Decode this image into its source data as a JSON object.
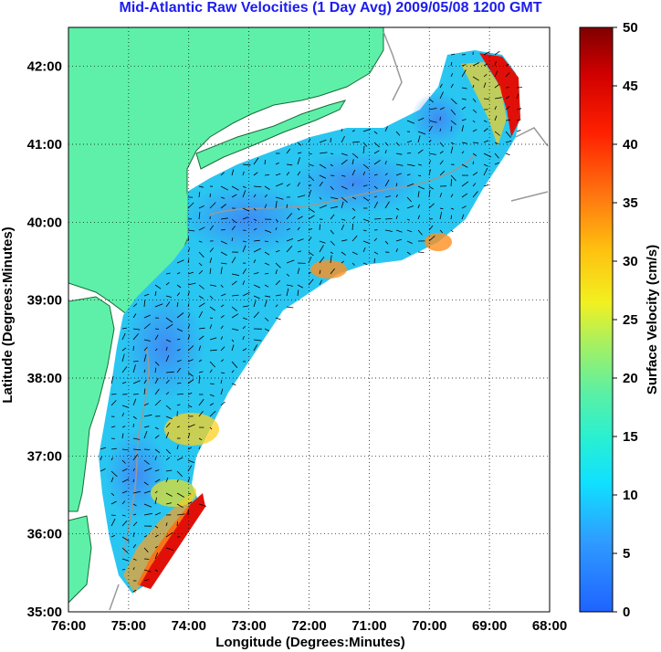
{
  "title": "Mid-Atlantic Raw Velocities (1 Day Avg) 2009/05/08 1200 GMT",
  "xlabel": "Longitude (Degrees:Minutes)",
  "ylabel": "Latitude (Degrees:Minutes)",
  "colorbar_label": "Surface Velocity (cm/s)",
  "x_ticks": [
    "76:00",
    "75:00",
    "74:00",
    "73:00",
    "72:00",
    "71:00",
    "70:00",
    "69:00",
    "68:00"
  ],
  "y_ticks": [
    "35:00",
    "36:00",
    "37:00",
    "38:00",
    "39:00",
    "40:00",
    "41:00",
    "42:00"
  ],
  "colorbar_ticks": [
    "0",
    "5",
    "10",
    "15",
    "20",
    "25",
    "30",
    "35",
    "40",
    "45",
    "50"
  ],
  "colors": {
    "land": "#5ef0a8",
    "title": "#1c1cf0",
    "grid": "#000000",
    "bathymetry": "#999999"
  },
  "chart_data": {
    "type": "heatmap",
    "x_range": [
      -76,
      -68
    ],
    "y_range": [
      35,
      42.5
    ],
    "colorbar_range": [
      0,
      50
    ],
    "grid": true
  }
}
